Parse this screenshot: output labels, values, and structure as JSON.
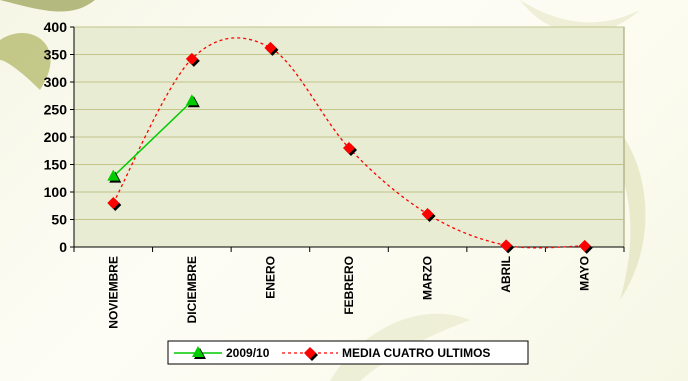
{
  "chart_data": {
    "type": "line",
    "categories": [
      "NOVIEMBRE",
      "DICIEMBRE",
      "ENERO",
      "FEBRERO",
      "MARZO",
      "ABRIL",
      "MAYO"
    ],
    "series": [
      {
        "name": "2009/10",
        "values": [
          128,
          265,
          null,
          null,
          null,
          null,
          null
        ],
        "color": "#00cc00",
        "marker": "triangle",
        "line_style": "solid"
      },
      {
        "name": "MEDIA CUATRO ULTIMOS",
        "values": [
          80,
          342,
          362,
          180,
          60,
          3,
          2
        ],
        "color": "#ff0000",
        "marker": "diamond",
        "line_style": "dotted-smooth"
      }
    ],
    "ylim": [
      0,
      400
    ],
    "yticks": [
      0,
      50,
      100,
      150,
      200,
      250,
      300,
      350,
      400
    ],
    "grid": true,
    "legend_position": "bottom",
    "plot_background": "#e8ecd2",
    "gridline_color": "#c2c48a"
  }
}
